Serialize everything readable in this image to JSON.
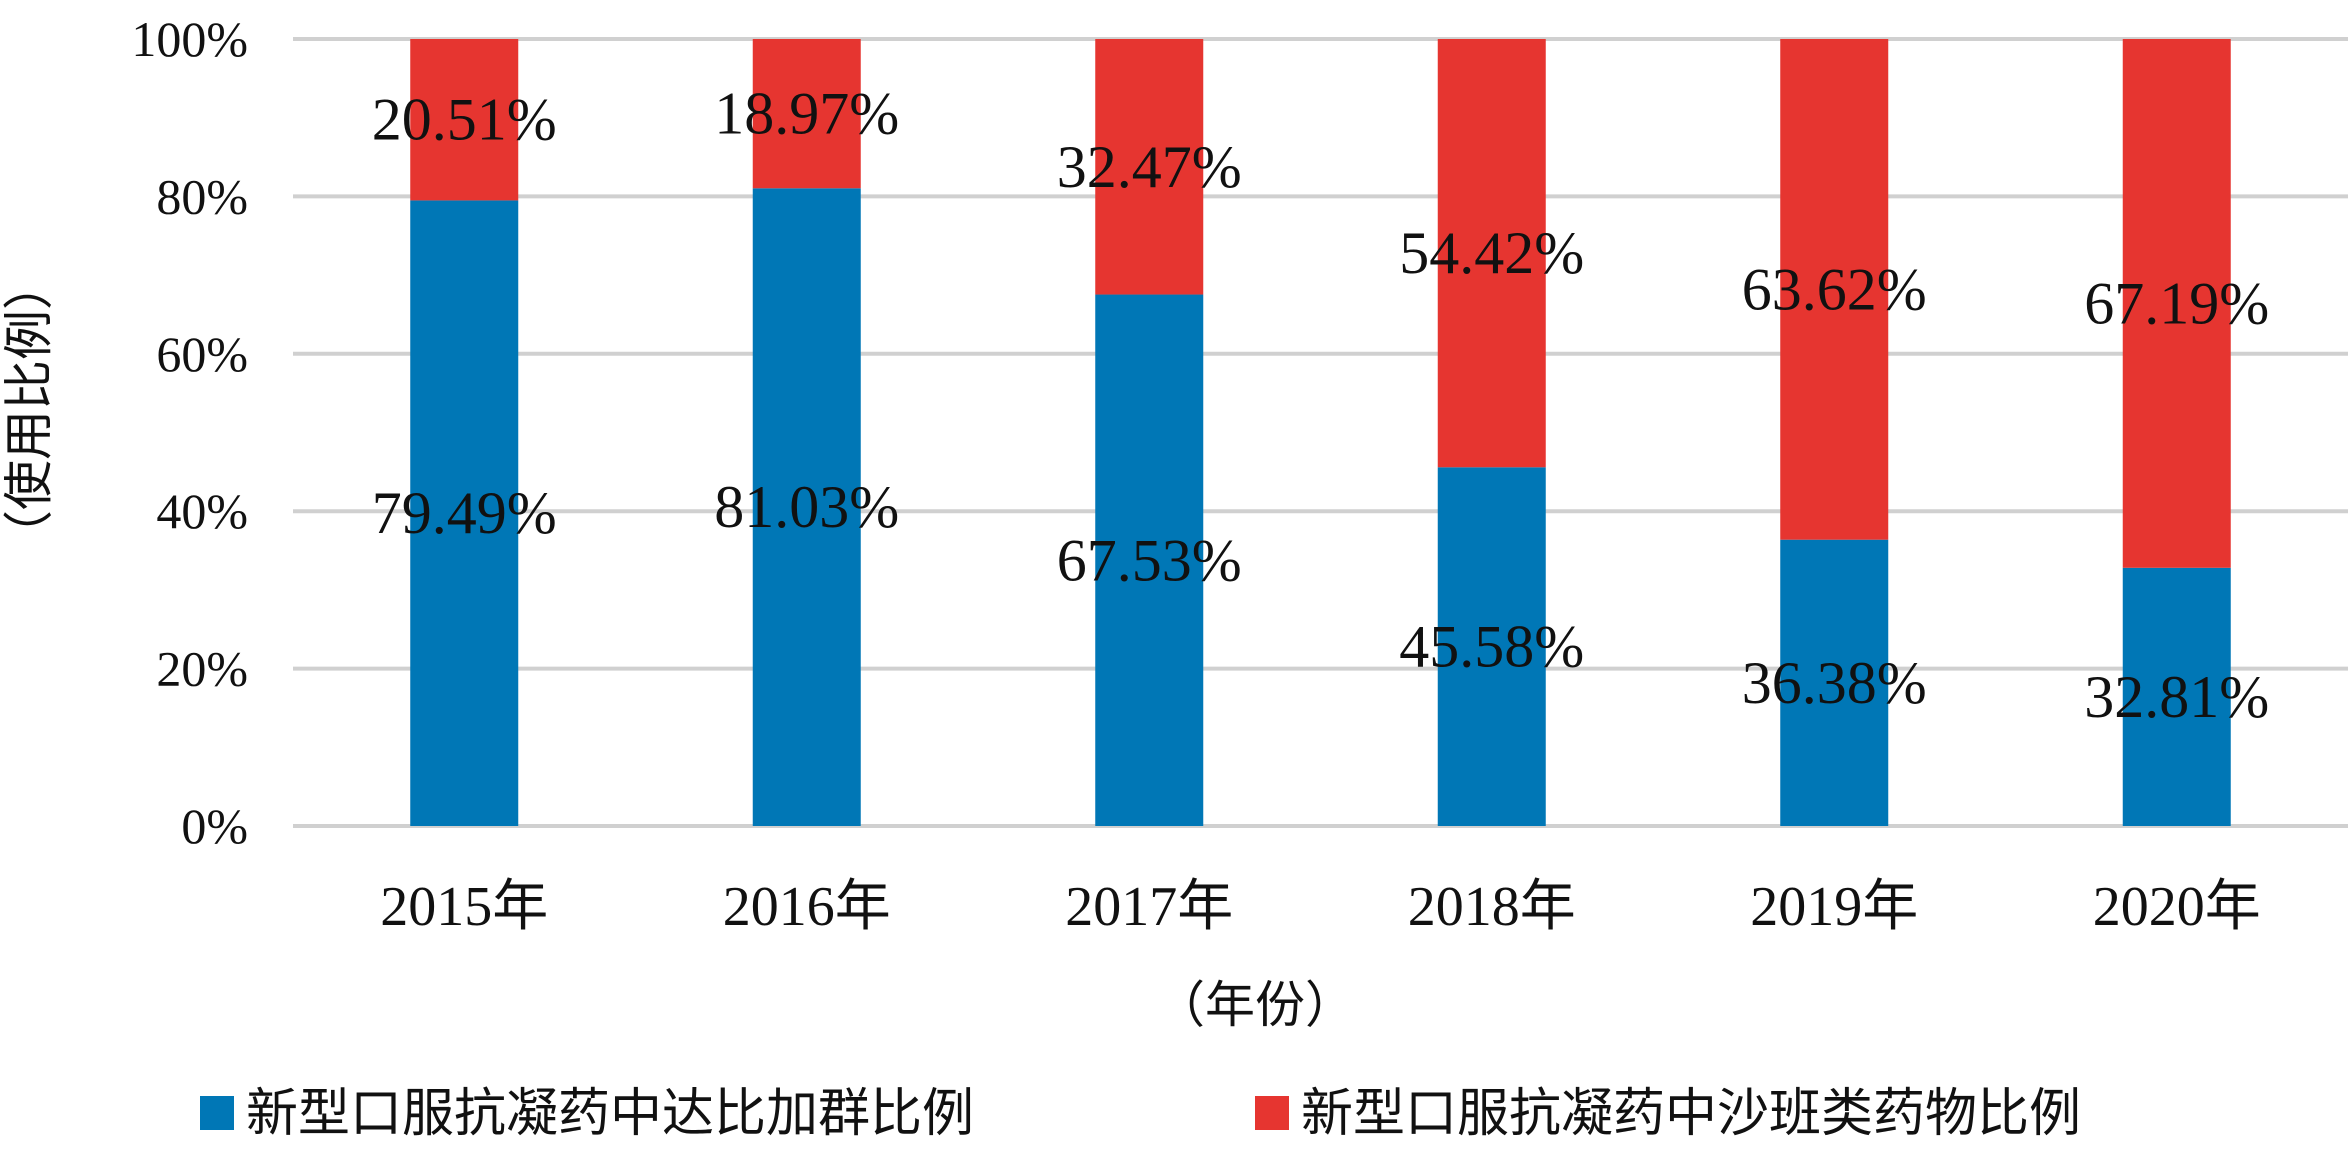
{
  "chart_data": {
    "type": "bar",
    "stacked": true,
    "categories": [
      "2015年",
      "2016年",
      "2017年",
      "2018年",
      "2019年",
      "2020年"
    ],
    "series": [
      {
        "name": "新型口服抗凝药中达比加群比例",
        "color": "#0077b6",
        "values": [
          79.49,
          81.03,
          67.53,
          45.58,
          36.38,
          32.81
        ],
        "labels": [
          "79.49%",
          "81.03%",
          "67.53%",
          "45.58%",
          "36.38%",
          "32.81%"
        ]
      },
      {
        "name": "新型口服抗凝药中沙班类药物比例",
        "color": "#e63530",
        "values": [
          20.51,
          18.97,
          32.47,
          54.42,
          63.62,
          67.19
        ],
        "labels": [
          "20.51%",
          "18.97%",
          "32.47%",
          "54.42%",
          "63.62%",
          "67.19%"
        ]
      }
    ],
    "xlabel": "（年份）",
    "ylabel": "（使用比例）",
    "ylim": [
      0,
      100
    ],
    "yticks": [
      "0%",
      "20%",
      "40%",
      "60%",
      "80%",
      "100%"
    ],
    "grid": true,
    "legend": "bottom"
  }
}
